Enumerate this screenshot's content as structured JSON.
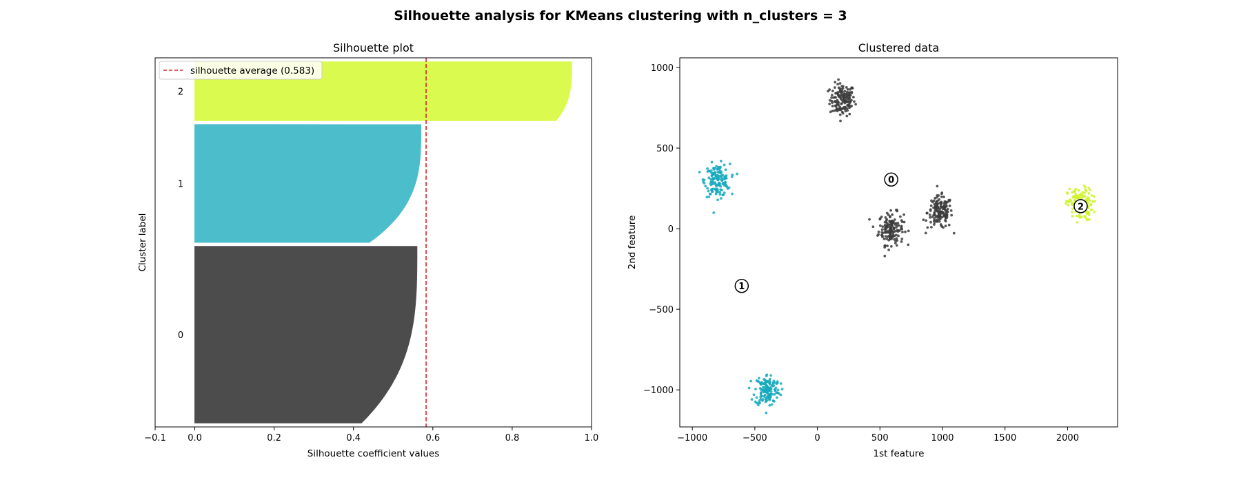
{
  "figure": {
    "suptitle": "Silhouette analysis for KMeans clustering with n_clusters = 3"
  },
  "chart_data": [
    {
      "type": "area",
      "title": "Silhouette plot",
      "xlabel": "Silhouette coefficient values",
      "ylabel": "Cluster label",
      "xlim": [
        -0.1,
        1.0
      ],
      "xticks": [
        "−0.1",
        "0.0",
        "0.2",
        "0.4",
        "0.6",
        "0.8",
        "1.0"
      ],
      "xtick_values": [
        -0.1,
        0.0,
        0.2,
        0.4,
        0.6,
        0.8,
        1.0
      ],
      "average": {
        "label": "silhouette average (0.583)",
        "value": 0.583,
        "color": "#d62728"
      },
      "legend_position": "upper left",
      "clusters": [
        {
          "label": "0",
          "color": "#4c4c4c",
          "size": 450,
          "max": 0.56,
          "min": 0.42
        },
        {
          "label": "1",
          "color": "#4bbdcb",
          "size": 300,
          "max": 0.57,
          "min": 0.44
        },
        {
          "label": "2",
          "color": "#dbfa4f",
          "size": 150,
          "max": 0.95,
          "min": 0.91
        }
      ]
    },
    {
      "type": "scatter",
      "title": "Clustered data",
      "xlabel": "1st feature",
      "ylabel": "2nd feature",
      "xlim": [
        -1100,
        2400
      ],
      "ylim": [
        -1230,
        1060
      ],
      "xticks": [
        "−1000",
        "−500",
        "0",
        "500",
        "1000",
        "1500",
        "2000"
      ],
      "xtick_values": [
        -1000,
        -500,
        0,
        500,
        1000,
        1500,
        2000
      ],
      "yticks": [
        "−1000",
        "−500",
        "0",
        "500",
        "1000"
      ],
      "ytick_values": [
        -1000,
        -500,
        0,
        500,
        1000
      ],
      "blobs": [
        {
          "cluster": 0,
          "cx": 200,
          "cy": 800,
          "n": 150,
          "color": "#3c3c3c"
        },
        {
          "cluster": 0,
          "cx": 590,
          "cy": 0,
          "n": 150,
          "color": "#3c3c3c"
        },
        {
          "cluster": 0,
          "cx": 980,
          "cy": 100,
          "n": 150,
          "color": "#3c3c3c"
        },
        {
          "cluster": 1,
          "cx": -800,
          "cy": 300,
          "n": 150,
          "color": "#17a9bd"
        },
        {
          "cluster": 1,
          "cx": -400,
          "cy": -1000,
          "n": 150,
          "color": "#17a9bd"
        },
        {
          "cluster": 2,
          "cx": 2100,
          "cy": 150,
          "n": 150,
          "color": "#cdf42a"
        }
      ],
      "centers": [
        {
          "label": "0",
          "x": 590,
          "y": 305
        },
        {
          "label": "1",
          "x": -605,
          "y": -355
        },
        {
          "label": "2",
          "x": 2105,
          "y": 140
        }
      ]
    }
  ]
}
